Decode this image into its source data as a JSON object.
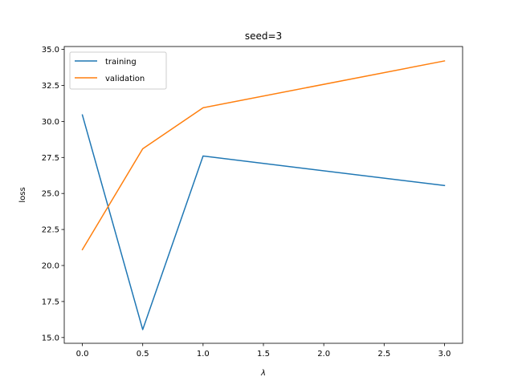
{
  "chart_data": {
    "type": "line",
    "title": "seed=3",
    "xlabel": "λ",
    "ylabel": "loss",
    "x": [
      0.0,
      0.5,
      1.0,
      3.0
    ],
    "series": [
      {
        "name": "training",
        "values": [
          30.45,
          15.55,
          27.6,
          25.55
        ],
        "color": "#1f77b4"
      },
      {
        "name": "validation",
        "values": [
          21.1,
          28.1,
          30.95,
          34.2
        ],
        "color": "#ff7f0e"
      }
    ],
    "xlim": [
      -0.15,
      3.15
    ],
    "ylim": [
      14.6,
      35.2
    ],
    "xticks": [
      0.0,
      0.5,
      1.0,
      1.5,
      2.0,
      2.5,
      3.0
    ],
    "xtick_labels": [
      "0.0",
      "0.5",
      "1.0",
      "1.5",
      "2.0",
      "2.5",
      "3.0"
    ],
    "yticks": [
      15.0,
      17.5,
      20.0,
      22.5,
      25.0,
      27.5,
      30.0,
      32.5,
      35.0
    ],
    "ytick_labels": [
      "15.0",
      "17.5",
      "20.0",
      "22.5",
      "25.0",
      "27.5",
      "30.0",
      "32.5",
      "35.0"
    ],
    "grid": false,
    "legend_position": "upper-left"
  }
}
